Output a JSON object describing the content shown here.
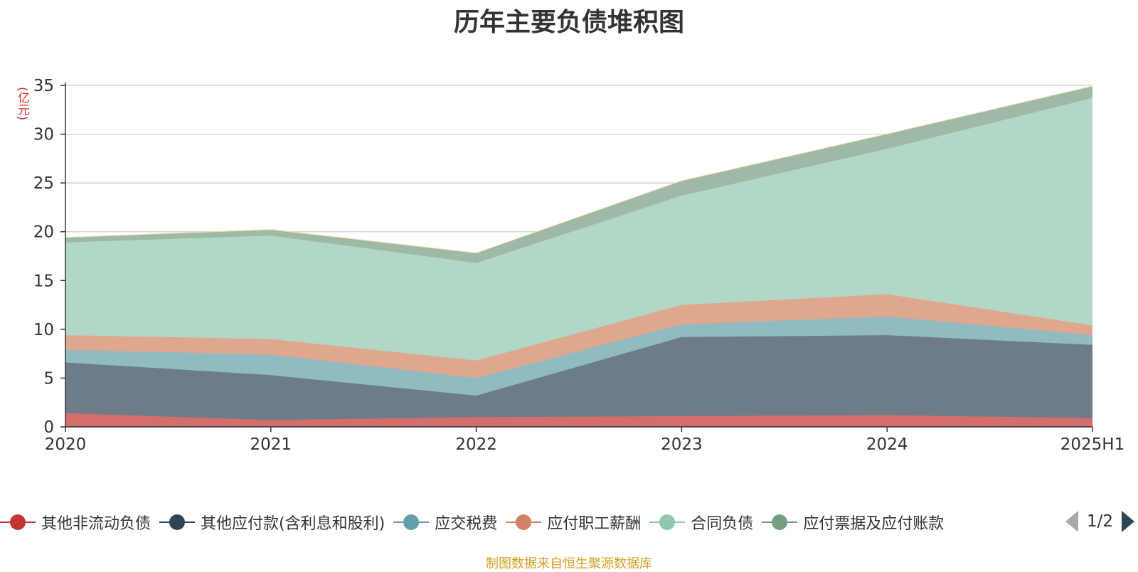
{
  "title": "历年主要负债堆积图",
  "y_unit": "(亿元)",
  "source": "制图数据来自恒生聚源数据库",
  "pager": {
    "text": "1/2"
  },
  "legend": [
    {
      "label": "其他非流动负债",
      "color": "#c23531"
    },
    {
      "label": "其他应付款(含利息和股利)",
      "color": "#2f4554"
    },
    {
      "label": "应交税费",
      "color": "#61a0a8"
    },
    {
      "label": "应付职工薪酬",
      "color": "#d48265"
    },
    {
      "label": "合同负债",
      "color": "#91c7ae"
    },
    {
      "label": "应付票据及应付账款",
      "color": "#749f83"
    }
  ],
  "chart_data": {
    "type": "area",
    "stacked": true,
    "categories": [
      "2020",
      "2021",
      "2022",
      "2023",
      "2024",
      "2025H1"
    ],
    "ylim": [
      0,
      35
    ],
    "yticks": [
      0,
      5,
      10,
      15,
      20,
      25,
      30,
      35
    ],
    "grid": true,
    "series": [
      {
        "name": "其他非流动负债",
        "color": "#c23531",
        "fill": "#d46e6c",
        "values": [
          1.4,
          0.7,
          1.0,
          1.1,
          1.2,
          0.9
        ]
      },
      {
        "name": "其他应付款(含利息和股利)",
        "color": "#2f4554",
        "fill": "#6e7c87",
        "values": [
          5.2,
          4.6,
          2.2,
          8.1,
          8.2,
          7.5
        ]
      },
      {
        "name": "应交税费",
        "color": "#61a0a8",
        "fill": "#8fbbc1",
        "values": [
          1.3,
          2.1,
          1.8,
          1.3,
          1.9,
          1.0
        ]
      },
      {
        "name": "应付职工薪酬",
        "color": "#d48265",
        "fill": "#e0a78f",
        "values": [
          1.5,
          1.6,
          1.8,
          2.0,
          2.3,
          1.0
        ]
      },
      {
        "name": "合同负债",
        "color": "#91c7ae",
        "fill": "#b2d7c6",
        "values": [
          9.5,
          10.6,
          10.0,
          11.2,
          14.9,
          23.3
        ]
      },
      {
        "name": "应付票据及应付账款",
        "color": "#749f83",
        "fill": "#9eb9a6",
        "values": [
          0.5,
          0.6,
          1.0,
          1.5,
          1.5,
          1.2
        ]
      },
      {
        "name": "",
        "color": "#e8c27a",
        "fill": "#f0d8a8",
        "values": [
          0.02,
          0.02,
          0.02,
          0.02,
          0.02,
          0.02
        ]
      }
    ]
  }
}
